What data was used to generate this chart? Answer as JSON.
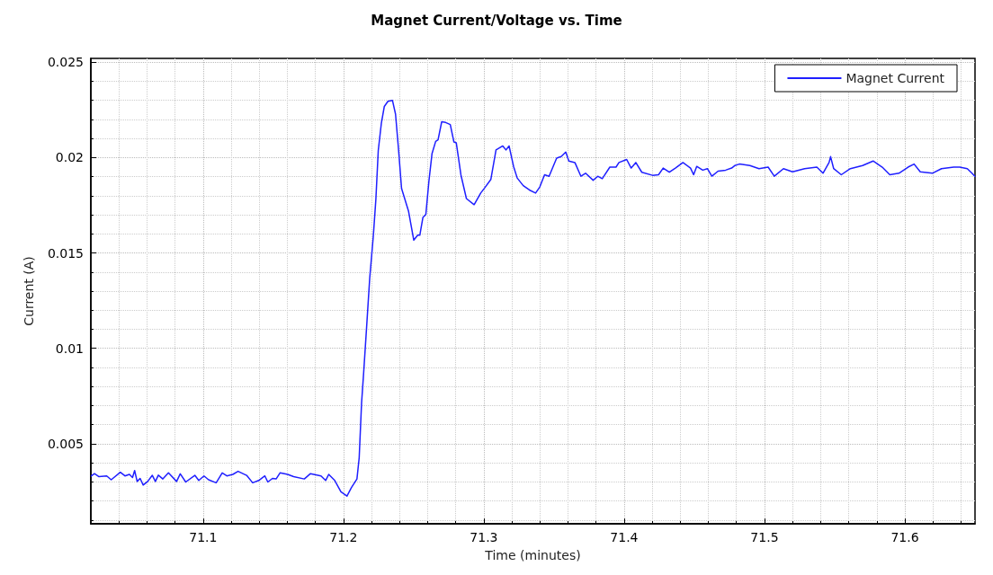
{
  "chart_data": {
    "type": "line",
    "title": "Magnet Current/Voltage vs. Time",
    "xlabel": "Time (minutes)",
    "ylabel": "Current (A)",
    "xlim": [
      71.02,
      71.65
    ],
    "xticks": [
      71.1,
      71.2,
      71.3,
      71.4,
      71.5,
      71.6
    ],
    "ylim": [
      0.0008,
      0.0252
    ],
    "yticks": [
      0.005,
      0.01,
      0.015,
      0.02,
      0.025
    ],
    "grid": true,
    "legend": "top right",
    "marker": "none",
    "line_style": "solid",
    "series": [
      {
        "name": "Magnet Current",
        "color": "#1f1fff",
        "x": [
          71.0204,
          71.0226,
          71.0258,
          71.0313,
          71.0345,
          71.041,
          71.0443,
          71.0475,
          71.0497,
          71.0512,
          71.053,
          71.0551,
          71.0573,
          71.0605,
          71.0638,
          71.066,
          71.0681,
          71.0713,
          71.0753,
          71.0811,
          71.0837,
          71.0876,
          71.0941,
          71.0969,
          71.1006,
          71.1039,
          71.1093,
          71.1136,
          71.1169,
          71.1212,
          71.1249,
          71.131,
          71.1353,
          71.1396,
          71.144,
          71.1461,
          71.1494,
          71.152,
          71.1548,
          71.1602,
          71.1645,
          71.1721,
          71.1765,
          71.184,
          71.1873,
          71.1895,
          71.1938,
          71.1982,
          71.2025,
          71.2057,
          71.2096,
          71.2112,
          71.2129,
          71.2144,
          71.2165,
          71.2187,
          71.2213,
          71.2231,
          71.2248,
          71.227,
          71.2291,
          71.2317,
          71.2349,
          71.2371,
          71.2393,
          71.2414,
          71.2464,
          71.2501,
          71.2529,
          71.2544,
          71.2566,
          71.2587,
          71.2609,
          71.2631,
          71.2657,
          71.2674,
          71.27,
          71.2728,
          71.2761,
          71.2787,
          71.2804,
          71.2837,
          71.2876,
          71.2931,
          71.2978,
          71.3011,
          71.305,
          71.3087,
          71.3135,
          71.3158,
          71.318,
          71.3212,
          71.3238,
          71.3281,
          71.3325,
          71.3369,
          71.3399,
          71.3433,
          71.3465,
          71.3519,
          71.3551,
          71.3584,
          71.3606,
          71.3649,
          71.3692,
          71.3725,
          71.3779,
          71.3812,
          71.3844,
          71.3898,
          71.3942,
          71.3963,
          71.4018,
          71.405,
          71.4083,
          71.4126,
          71.4202,
          71.4245,
          71.4278,
          71.4322,
          71.4365,
          71.4419,
          71.4473,
          71.4495,
          71.4517,
          71.456,
          71.4593,
          71.4625,
          71.4669,
          71.4723,
          71.4766,
          71.4788,
          71.4821,
          71.4896,
          71.4961,
          71.5026,
          71.507,
          71.5135,
          71.52,
          71.5286,
          71.5373,
          71.5417,
          71.546,
          71.5471,
          71.5493,
          71.5547,
          71.5612,
          71.5699,
          71.5774,
          71.5839,
          71.5893,
          71.5958,
          71.6023,
          71.6066,
          71.611,
          71.6196,
          71.6261,
          71.6348,
          71.6391,
          71.6445,
          71.6478,
          71.6499
        ],
        "values": [
          0.00331,
          0.00343,
          0.00327,
          0.00331,
          0.00311,
          0.0035,
          0.00331,
          0.00339,
          0.00323,
          0.00359,
          0.00302,
          0.00318,
          0.00283,
          0.00302,
          0.00334,
          0.00302,
          0.00335,
          0.00315,
          0.00347,
          0.00302,
          0.00342,
          0.00299,
          0.00334,
          0.00307,
          0.00331,
          0.00311,
          0.00295,
          0.00347,
          0.00331,
          0.00339,
          0.00355,
          0.00334,
          0.00295,
          0.00307,
          0.00331,
          0.00299,
          0.00318,
          0.00315,
          0.00347,
          0.00339,
          0.00327,
          0.00315,
          0.00343,
          0.00331,
          0.00307,
          0.00339,
          0.00307,
          0.00248,
          0.00225,
          0.0027,
          0.00315,
          0.00426,
          0.00713,
          0.00873,
          0.01112,
          0.01367,
          0.01591,
          0.01782,
          0.02037,
          0.0218,
          0.02268,
          0.02295,
          0.023,
          0.02228,
          0.02037,
          0.01838,
          0.01718,
          0.01567,
          0.01593,
          0.01593,
          0.01686,
          0.01702,
          0.01877,
          0.02021,
          0.02085,
          0.02093,
          0.02188,
          0.02184,
          0.02173,
          0.02082,
          0.02077,
          0.01909,
          0.01785,
          0.01753,
          0.01814,
          0.01846,
          0.01885,
          0.0204,
          0.02061,
          0.0204,
          0.02061,
          0.01954,
          0.01893,
          0.01853,
          0.0183,
          0.01814,
          0.01846,
          0.0191,
          0.01902,
          0.01997,
          0.02005,
          0.02029,
          0.01982,
          0.01974,
          0.01902,
          0.01918,
          0.01881,
          0.01902,
          0.01889,
          0.0195,
          0.0195,
          0.01974,
          0.0199,
          0.01945,
          0.01974,
          0.01923,
          0.01907,
          0.0191,
          0.01945,
          0.01923,
          0.01945,
          0.01974,
          0.01945,
          0.0191,
          0.01954,
          0.01934,
          0.01942,
          0.01902,
          0.01929,
          0.01934,
          0.01945,
          0.01958,
          0.01966,
          0.01958,
          0.01942,
          0.0195,
          0.01902,
          0.01942,
          0.01925,
          0.01942,
          0.0195,
          0.01918,
          0.01974,
          0.02005,
          0.01942,
          0.0191,
          0.01942,
          0.01958,
          0.01982,
          0.0195,
          0.0191,
          0.01918,
          0.0195,
          0.01966,
          0.01925,
          0.01918,
          0.01942,
          0.0195,
          0.0195,
          0.01942,
          0.01918,
          0.01902
        ]
      }
    ]
  }
}
